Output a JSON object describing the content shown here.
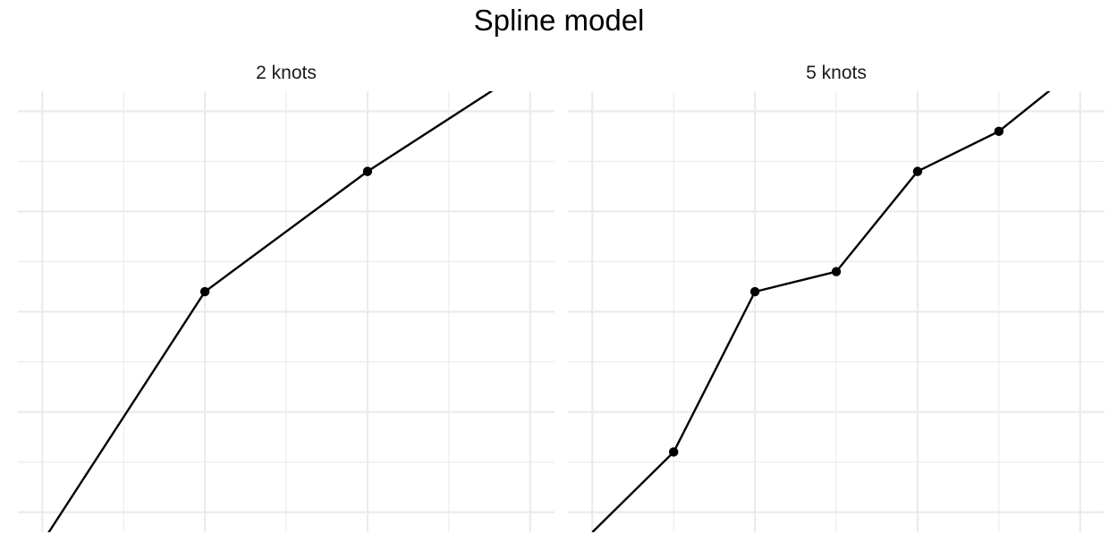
{
  "title": "Spline model",
  "colors": {
    "line": "#000000",
    "grid": "#ebebeb",
    "background": "#ffffff"
  },
  "chart_data": [
    {
      "type": "line",
      "title": "2 knots",
      "xlabel": "",
      "ylabel": "",
      "grid": true,
      "xlim": [
        -0.3,
        6.3
      ],
      "ylim": [
        -0.4,
        8.4
      ],
      "x": [
        0,
        2,
        4,
        6
      ],
      "y": [
        -0.6,
        4.4,
        6.8,
        8.9
      ],
      "knots": [
        {
          "x": 2,
          "y": 4.4
        },
        {
          "x": 4,
          "y": 6.8
        }
      ]
    },
    {
      "type": "line",
      "title": "5 knots",
      "xlabel": "",
      "ylabel": "",
      "grid": true,
      "xlim": [
        -0.3,
        6.3
      ],
      "ylim": [
        -0.4,
        8.4
      ],
      "x": [
        0,
        1,
        2,
        3,
        4,
        5,
        6
      ],
      "y": [
        -0.4,
        1.2,
        4.4,
        4.8,
        6.8,
        7.6,
        8.9
      ],
      "knots": [
        {
          "x": 1,
          "y": 1.2
        },
        {
          "x": 2,
          "y": 4.4
        },
        {
          "x": 3,
          "y": 4.8
        },
        {
          "x": 4,
          "y": 6.8
        },
        {
          "x": 5,
          "y": 7.6
        }
      ]
    }
  ]
}
